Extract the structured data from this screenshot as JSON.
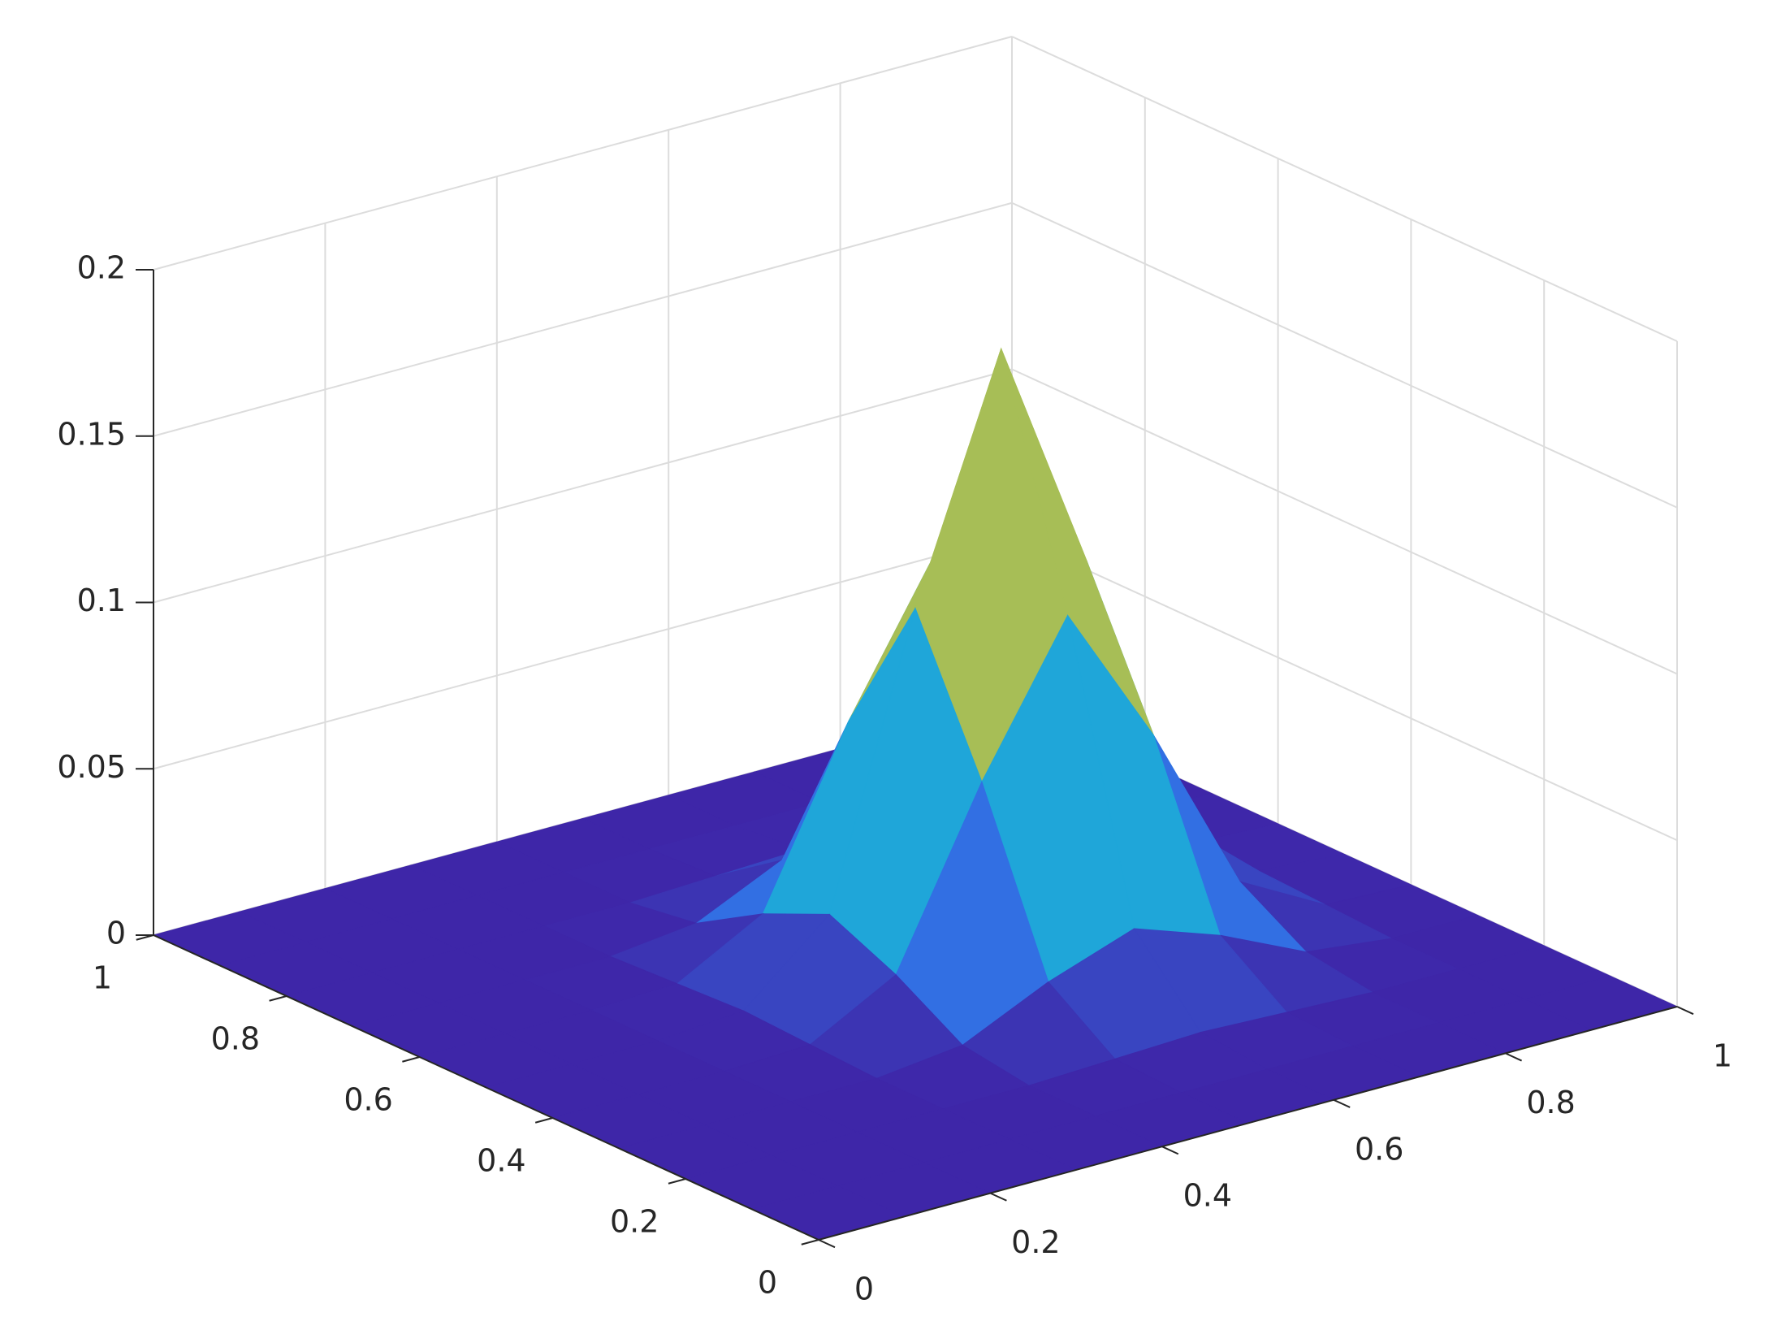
{
  "chart_data": {
    "type": "surface",
    "x": [
      0,
      0.1,
      0.2,
      0.3,
      0.4,
      0.5,
      0.6,
      0.7,
      0.8,
      0.9,
      1
    ],
    "y": [
      0,
      0.1,
      0.2,
      0.3,
      0.4,
      0.5,
      0.6,
      0.7,
      0.8,
      0.9,
      1
    ],
    "z": [
      [
        0,
        0,
        0,
        0,
        0,
        0,
        0,
        0,
        0,
        0,
        0
      ],
      [
        0,
        0,
        0,
        0,
        0,
        0,
        0,
        0,
        0,
        0,
        0
      ],
      [
        0,
        0,
        0,
        0,
        0,
        0.001,
        0.002,
        0.001,
        0,
        0,
        0
      ],
      [
        0,
        0,
        0,
        0,
        0.003,
        0.015,
        0.024,
        0.015,
        0.003,
        0,
        0
      ],
      [
        0,
        0,
        0,
        0.001,
        0.015,
        0.066,
        0.109,
        0.066,
        0.015,
        0.001,
        0
      ],
      [
        0,
        0,
        0,
        0.002,
        0.024,
        0.109,
        0.18,
        0.109,
        0.024,
        0.002,
        0
      ],
      [
        0,
        0,
        0,
        0.001,
        0.015,
        0.066,
        0.109,
        0.066,
        0.015,
        0.001,
        0
      ],
      [
        0,
        0,
        0,
        0,
        0.003,
        0.015,
        0.024,
        0.015,
        0.003,
        0,
        0
      ],
      [
        0,
        0,
        0,
        0,
        0,
        0.001,
        0.002,
        0.001,
        0,
        0,
        0
      ],
      [
        0,
        0,
        0,
        0,
        0,
        0,
        0,
        0,
        0,
        0,
        0
      ],
      [
        0,
        0,
        0,
        0,
        0,
        0,
        0,
        0,
        0,
        0,
        0
      ]
    ],
    "xlim": [
      0,
      1
    ],
    "ylim": [
      0,
      1
    ],
    "zlim": [
      0,
      0.2
    ],
    "xticks": [
      0,
      0.2,
      0.4,
      0.6,
      0.8,
      1
    ],
    "yticks": [
      0,
      0.2,
      0.4,
      0.6,
      0.8,
      1
    ],
    "zticks": [
      0,
      0.05,
      0.1,
      0.15,
      0.2
    ],
    "colormap": [
      "#3e26a8",
      "#2f7ff0",
      "#1bb1d3",
      "#37c78f",
      "#b8bd4d",
      "#fac43a",
      "#f9fb0e"
    ],
    "grid": true
  }
}
